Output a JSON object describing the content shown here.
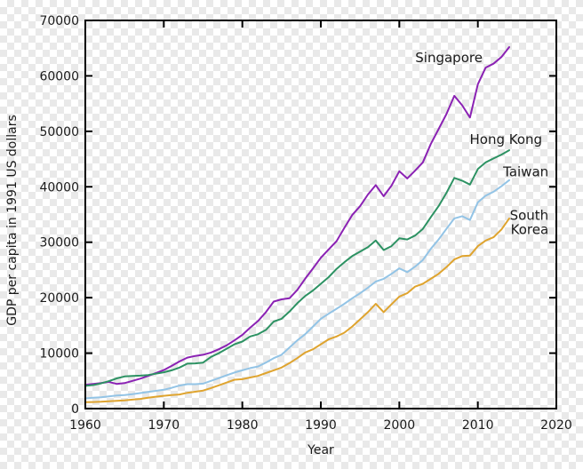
{
  "chart_data": {
    "type": "line",
    "title": "",
    "xlabel": "Year",
    "ylabel": "GDP per capita in 1991 US dollars",
    "xlim": [
      1960,
      2020
    ],
    "ylim": [
      0,
      70000
    ],
    "x_ticks": [
      1960,
      1970,
      1980,
      1990,
      2000,
      2010,
      2020
    ],
    "y_ticks": [
      0,
      10000,
      20000,
      30000,
      40000,
      50000,
      60000,
      70000
    ],
    "grid": false,
    "legend_position": "inline-annotations",
    "background": "transparency-checkerboard",
    "colors": {
      "axis": "#000000",
      "text": "#1a1a1a",
      "checker_light": "#ffffff",
      "checker_dark": "#e9e9e9"
    },
    "x": [
      1960,
      1961,
      1962,
      1963,
      1964,
      1965,
      1966,
      1967,
      1968,
      1969,
      1970,
      1971,
      1972,
      1973,
      1974,
      1975,
      1976,
      1977,
      1978,
      1979,
      1980,
      1981,
      1982,
      1983,
      1984,
      1985,
      1986,
      1987,
      1988,
      1989,
      1990,
      1991,
      1992,
      1993,
      1994,
      1995,
      1996,
      1997,
      1998,
      1999,
      2000,
      2001,
      2002,
      2003,
      2004,
      2005,
      2006,
      2007,
      2008,
      2009,
      2010,
      2011,
      2012,
      2013,
      2014
    ],
    "series": [
      {
        "name": "Singapore",
        "color": "#8b22b4",
        "values": [
          4300,
          4450,
          4600,
          4800,
          4450,
          4600,
          5000,
          5400,
          5900,
          6400,
          6950,
          7700,
          8500,
          9200,
          9500,
          9700,
          10100,
          10700,
          11400,
          12300,
          13300,
          14600,
          15800,
          17400,
          19300,
          19700,
          19900,
          21400,
          23400,
          25300,
          27200,
          28700,
          30200,
          32600,
          34900,
          36500,
          38600,
          40300,
          38300,
          40200,
          42800,
          41500,
          42900,
          44400,
          47700,
          50400,
          53100,
          56400,
          54700,
          52500,
          58500,
          61500,
          62200,
          63400,
          65200
        ]
      },
      {
        "name": "Hong Kong",
        "color": "#2d9263",
        "values": [
          4100,
          4250,
          4550,
          4950,
          5450,
          5800,
          5900,
          5950,
          6050,
          6300,
          6550,
          6900,
          7400,
          8100,
          8150,
          8300,
          9300,
          10000,
          10800,
          11600,
          12100,
          13000,
          13400,
          14200,
          15700,
          16200,
          17500,
          19000,
          20300,
          21300,
          22500,
          23700,
          25200,
          26400,
          27500,
          28300,
          29100,
          30300,
          28600,
          29300,
          30700,
          30500,
          31200,
          32400,
          34500,
          36500,
          38900,
          41600,
          41100,
          40400,
          43200,
          44400,
          45100,
          45800,
          46600
        ]
      },
      {
        "name": "Taiwan",
        "color": "#93c4e6",
        "values": [
          1850,
          1950,
          2050,
          2200,
          2350,
          2450,
          2600,
          2800,
          3000,
          3200,
          3400,
          3750,
          4150,
          4400,
          4400,
          4500,
          5000,
          5500,
          6000,
          6500,
          6900,
          7300,
          7600,
          8300,
          9100,
          9700,
          11000,
          12300,
          13400,
          14800,
          16200,
          17100,
          18000,
          18900,
          19900,
          20800,
          21800,
          22900,
          23400,
          24300,
          25300,
          24600,
          25600,
          26800,
          28800,
          30500,
          32400,
          34300,
          34700,
          34000,
          37200,
          38400,
          39100,
          40100,
          41200
        ]
      },
      {
        "name": "South Korea",
        "color": "#dfa42f",
        "values": [
          1150,
          1180,
          1230,
          1320,
          1410,
          1480,
          1620,
          1750,
          1950,
          2150,
          2300,
          2450,
          2550,
          2850,
          3050,
          3250,
          3700,
          4200,
          4700,
          5200,
          5300,
          5600,
          5900,
          6400,
          6900,
          7400,
          8200,
          9100,
          10100,
          10700,
          11600,
          12500,
          13000,
          13700,
          14800,
          16100,
          17400,
          18900,
          17400,
          18800,
          20200,
          20800,
          22000,
          22500,
          23400,
          24300,
          25500,
          26900,
          27500,
          27600,
          29300,
          30300,
          30900,
          32300,
          34300
        ]
      }
    ],
    "annotations": [
      {
        "text": "Singapore",
        "x": 2010.6,
        "y": 63300,
        "align": "end"
      },
      {
        "text": "Hong Kong",
        "x": 2018.2,
        "y": 48500,
        "align": "end"
      },
      {
        "text": "Taiwan",
        "x": 2019.0,
        "y": 42700,
        "align": "end"
      },
      {
        "text": "South",
        "x": 2019.0,
        "y": 34800,
        "align": "end"
      },
      {
        "text": "Korea",
        "x": 2019.0,
        "y": 32250,
        "align": "end"
      }
    ]
  }
}
